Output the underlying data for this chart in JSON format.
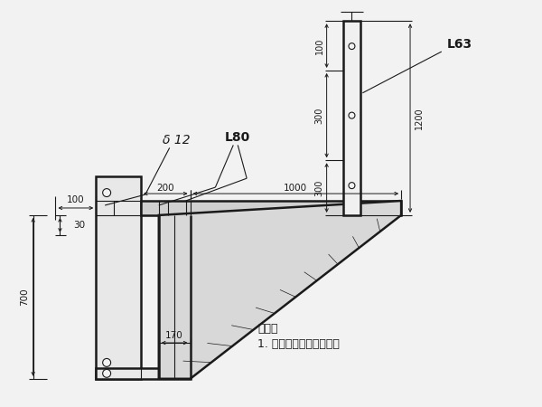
{
  "bg_color": "#f2f2f2",
  "line_color": "#1a1a1a",
  "figsize": [
    6.0,
    4.5
  ],
  "dpi": 100,
  "note_line1": "说明：",
  "note_line2": "1. 图中尺寸均以毫米计。",
  "label_delta12": "δ 12",
  "label_L80": "L80",
  "label_L63": "L63",
  "dim_100a": "100",
  "dim_200": "200",
  "dim_1000": "1000",
  "dim_30": "30",
  "dim_700": "700",
  "dim_170": "170",
  "dim_300a": "300",
  "dim_300b": "300",
  "dim_100b": "100",
  "dim_1200": "1200"
}
